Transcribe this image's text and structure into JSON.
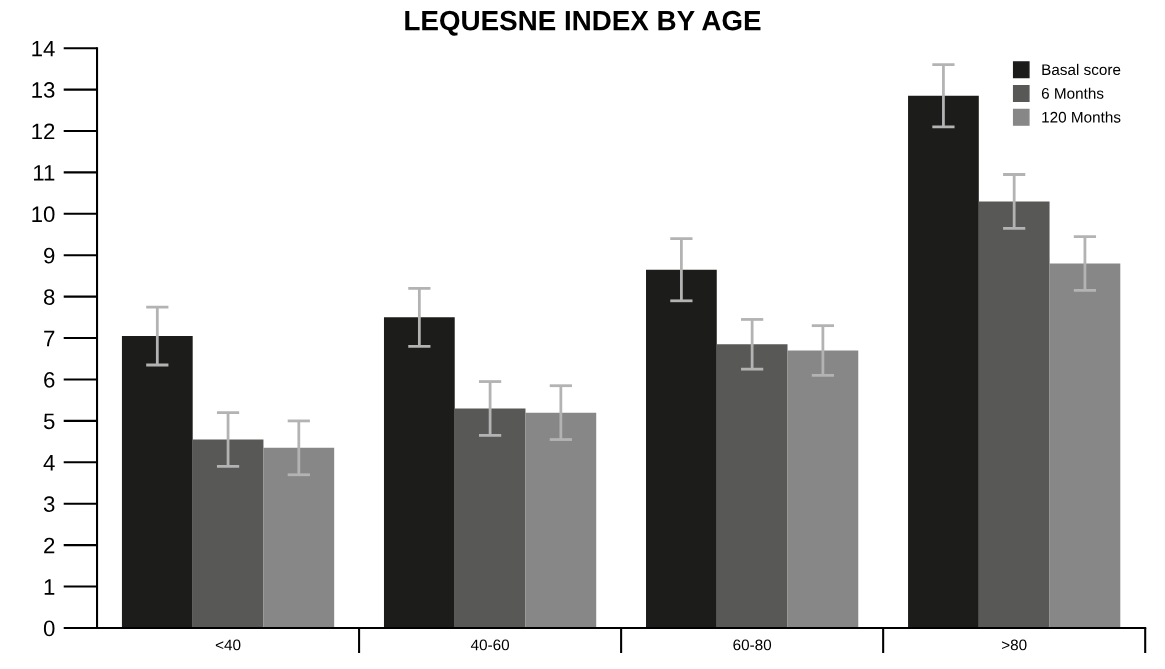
{
  "chart_data": {
    "type": "bar",
    "title": "LEQUESNE INDEX BY AGE",
    "categories": [
      "<40",
      "40-60",
      "60-80",
      ">80"
    ],
    "series": [
      {
        "name": "Basal score",
        "color": "#1c1c1b",
        "values": [
          7.05,
          7.5,
          8.65,
          12.85
        ],
        "errors": [
          0.7,
          0.7,
          0.75,
          0.75
        ]
      },
      {
        "name": "6 Months",
        "color": "#585857",
        "values": [
          4.55,
          5.3,
          6.85,
          10.3
        ],
        "errors": [
          0.65,
          0.65,
          0.6,
          0.65
        ]
      },
      {
        "name": "120 Months",
        "color": "#878787",
        "values": [
          4.35,
          5.2,
          6.7,
          8.8
        ],
        "errors": [
          0.65,
          0.65,
          0.6,
          0.65
        ]
      }
    ],
    "ylim": [
      0,
      14
    ],
    "yticks": [
      0,
      1,
      2,
      3,
      4,
      5,
      6,
      7,
      8,
      9,
      10,
      11,
      12,
      13,
      14
    ],
    "grid": false,
    "legend": "top right"
  }
}
